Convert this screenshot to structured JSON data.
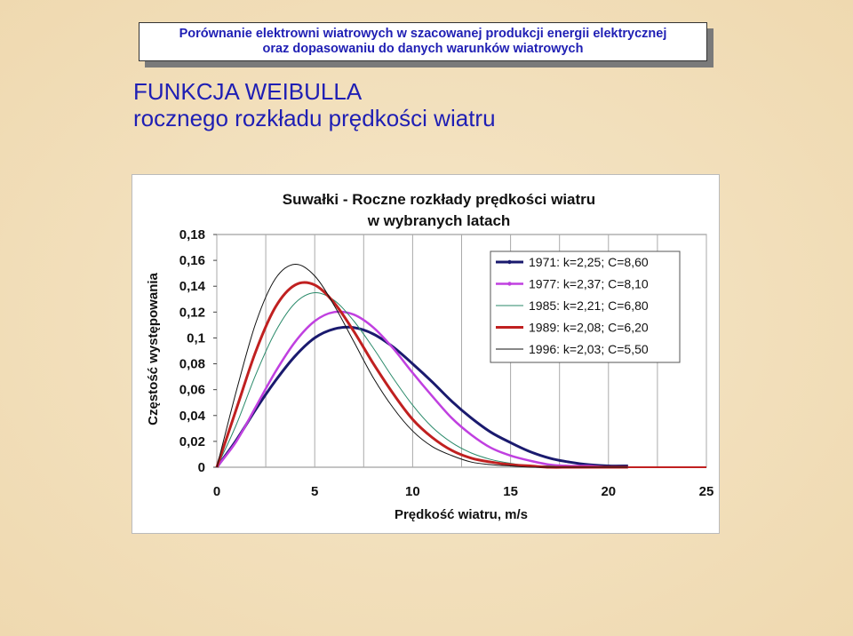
{
  "header": {
    "line1": "Porównanie elektrowni wiatrowych w szacowanej produkcji energii elektrycznej",
    "line2": "oraz dopasowaniu do danych warunków wiatrowych"
  },
  "heading": {
    "line1": "FUNKCJA WEIBULLA",
    "line2": "rocznego rozkładu prędkości wiatru"
  },
  "chart_data": {
    "type": "line",
    "title_line1": "Suwałki  -  Roczne rozkłady prędkości wiatru",
    "title_line2": "w  wybranych latach",
    "xlabel": "Prędkość wiatru,  m/s",
    "ylabel": "Częstość występowania",
    "xlim": [
      0,
      25
    ],
    "ylim": [
      0,
      0.18
    ],
    "x_ticks": [
      "0",
      "5",
      "10",
      "15",
      "20",
      "25"
    ],
    "y_ticks": [
      "0",
      "0,02",
      "0,04",
      "0,06",
      "0,08",
      "0,1",
      "0,12",
      "0,14",
      "0,16",
      "0,18"
    ],
    "grid": "vertical",
    "legend_position": "top-right",
    "x": [
      0,
      1,
      2,
      3,
      4,
      5,
      6,
      7,
      8,
      9,
      10,
      11,
      12,
      13,
      14,
      15,
      16,
      17,
      18,
      19,
      20,
      21
    ],
    "series": [
      {
        "name": "1971:  k=2,25; C=8,60",
        "color": "#1a1a6e",
        "width": 3,
        "values": [
          0,
          0.021,
          0.045,
          0.067,
          0.086,
          0.1,
          0.107,
          0.108,
          0.103,
          0.093,
          0.08,
          0.066,
          0.051,
          0.038,
          0.027,
          0.019,
          0.012,
          0.007,
          0.004,
          0.002,
          0.001,
          0.001
        ]
      },
      {
        "name": "1977:  k=2,37; C=8,10",
        "color": "#c040e0",
        "width": 2.5,
        "values": [
          0,
          0.02,
          0.047,
          0.074,
          0.097,
          0.113,
          0.12,
          0.118,
          0.108,
          0.092,
          0.073,
          0.055,
          0.038,
          0.025,
          0.015,
          0.009,
          0.005,
          0.002,
          0.001,
          0.001,
          0,
          0
        ]
      },
      {
        "name": "1985:  k=2,21; C=6,80",
        "color": "#2a8a6a",
        "width": 1,
        "values": [
          0,
          0.033,
          0.072,
          0.105,
          0.127,
          0.135,
          0.129,
          0.113,
          0.092,
          0.069,
          0.048,
          0.031,
          0.019,
          0.011,
          0.006,
          0.003,
          0.001,
          0.001,
          0,
          0,
          0,
          0
        ]
      },
      {
        "name": "1989:  k=2,08; C=6,20",
        "color": "#c02020",
        "width": 3,
        "values": [
          0,
          0.045,
          0.09,
          0.124,
          0.141,
          0.141,
          0.127,
          0.105,
          0.08,
          0.057,
          0.037,
          0.023,
          0.013,
          0.007,
          0.004,
          0.002,
          0.001,
          0,
          0,
          0,
          0,
          0
        ]
      },
      {
        "name": "1996:  k=2,03; C=5,50",
        "color": "#111111",
        "width": 1,
        "values": [
          0,
          0.059,
          0.112,
          0.146,
          0.157,
          0.148,
          0.125,
          0.097,
          0.069,
          0.046,
          0.028,
          0.016,
          0.009,
          0.004,
          0.002,
          0.001,
          0,
          0,
          0,
          0,
          0,
          0
        ]
      }
    ]
  }
}
